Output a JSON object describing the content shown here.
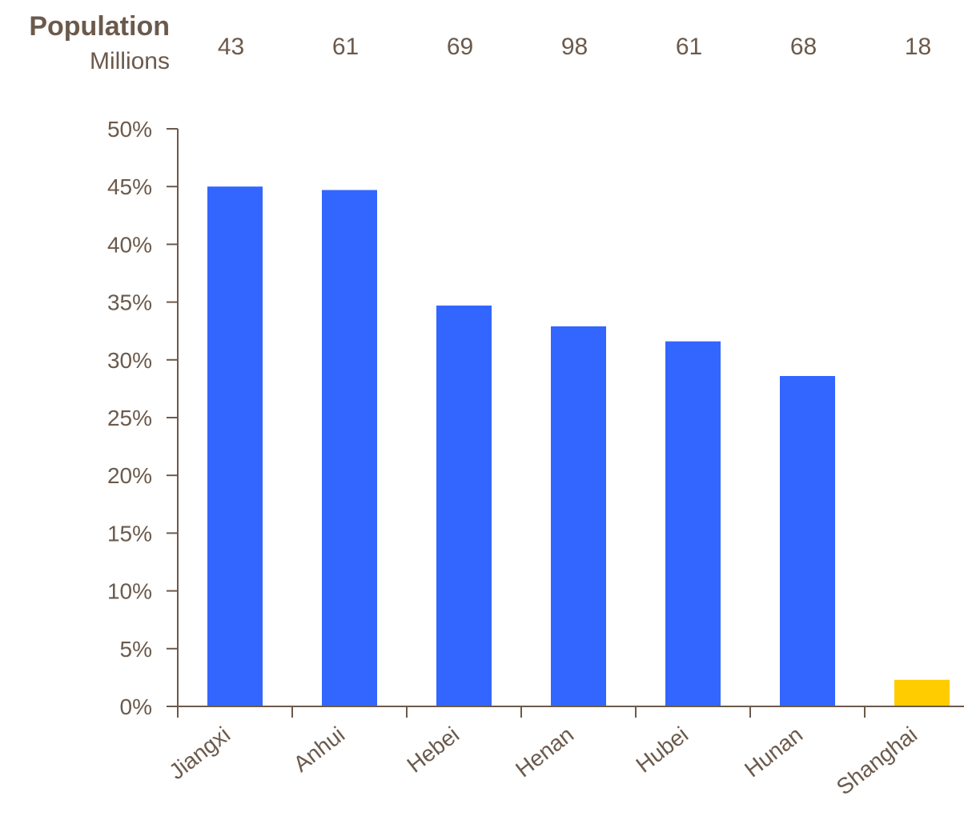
{
  "chart_data": {
    "type": "bar",
    "header": {
      "title": "Population",
      "unit": "Millions"
    },
    "categories": [
      "Jiangxi",
      "Anhui",
      "Hebei",
      "Henan",
      "Hubei",
      "Hunan",
      "Shanghai"
    ],
    "population_millions": [
      "43",
      "61",
      "69",
      "98",
      "61",
      "68",
      "18"
    ],
    "values": [
      45.0,
      44.7,
      34.7,
      32.9,
      31.6,
      28.6,
      2.3
    ],
    "y_ticks": [
      "0%",
      "5%",
      "10%",
      "15%",
      "20%",
      "25%",
      "30%",
      "35%",
      "40%",
      "45%",
      "50%"
    ],
    "ylim": [
      0,
      50
    ],
    "grid": false,
    "legend": "none",
    "colors": {
      "default_bar": "#3366ff",
      "highlight_bar": "#ffcc00",
      "text": "#6b5a4c",
      "axis": "#6b5a4c"
    },
    "highlight_category": "Shanghai"
  }
}
